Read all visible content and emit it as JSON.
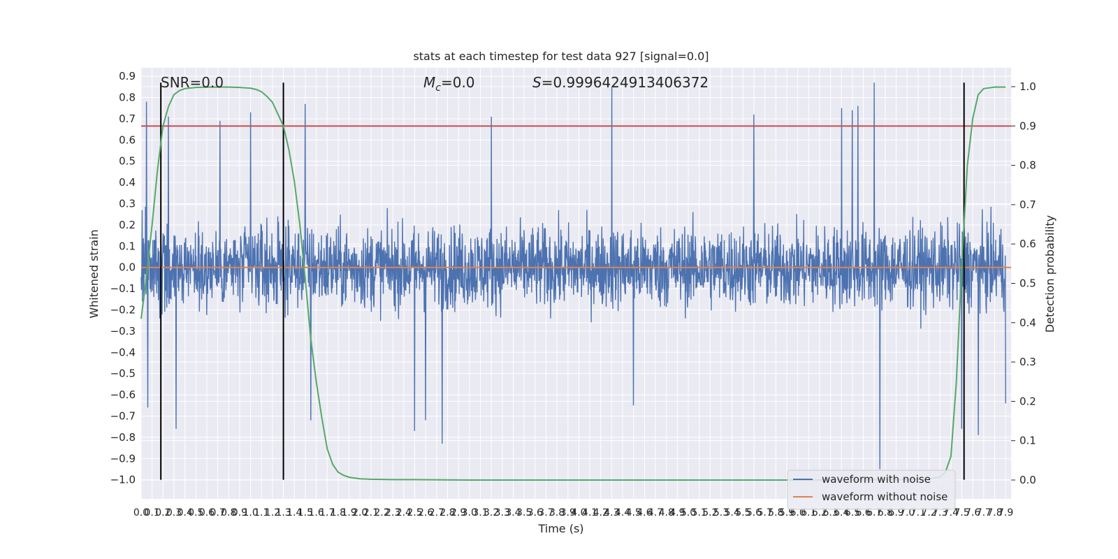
{
  "chart_data": {
    "type": "line",
    "title": "stats at each timestep for test data 927 [signal=0.0]",
    "xlabel": "Time (s)",
    "ylabel": "Whitened strain",
    "y2label": "Detection probability",
    "xlim": [
      0.0,
      7.95
    ],
    "ylim": [
      -1.09,
      0.94
    ],
    "y2lim": [
      -0.048,
      1.048
    ],
    "x_ticks": [
      0.0,
      0.1,
      0.2,
      0.3,
      0.4,
      0.5,
      0.6,
      0.7,
      0.8,
      0.9,
      1.0,
      1.1,
      1.2,
      1.3,
      1.4,
      1.5,
      1.6,
      1.7,
      1.8,
      1.9,
      2.0,
      2.1,
      2.2,
      2.3,
      2.4,
      2.5,
      2.6,
      2.7,
      2.8,
      2.9,
      3.0,
      3.1,
      3.2,
      3.3,
      3.4,
      3.5,
      3.6,
      3.7,
      3.8,
      3.9,
      4.0,
      4.1,
      4.2,
      4.3,
      4.4,
      4.5,
      4.6,
      4.7,
      4.8,
      4.9,
      5.0,
      5.1,
      5.2,
      5.3,
      5.4,
      5.5,
      5.6,
      5.7,
      5.8,
      5.9,
      6.0,
      6.1,
      6.2,
      6.3,
      6.4,
      6.5,
      6.6,
      6.7,
      6.8,
      6.9,
      7.0,
      7.1,
      7.2,
      7.3,
      7.4,
      7.5,
      7.6,
      7.7,
      7.8,
      7.9
    ],
    "y_ticks": [
      -1.0,
      -0.9,
      -0.8,
      -0.7,
      -0.6,
      -0.5,
      -0.4,
      -0.3,
      -0.2,
      -0.1,
      0.0,
      0.1,
      0.2,
      0.3,
      0.4,
      0.5,
      0.6,
      0.7,
      0.8,
      0.9
    ],
    "y2_ticks": [
      0.0,
      0.1,
      0.2,
      0.3,
      0.4,
      0.5,
      0.6,
      0.7,
      0.8,
      0.9,
      1.0
    ],
    "annotations": {
      "snr": "SNR=0.0",
      "mc_symbol": "M",
      "mc_sub": "c",
      "mc_value": "=0.0",
      "s_symbol": "S",
      "s_value": "=0.9996424913406372"
    },
    "threshold": {
      "y2": 0.9,
      "color": "#c44e52"
    },
    "vertical_lines": [
      0.18,
      1.3,
      7.52
    ],
    "series": [
      {
        "name": "waveform with noise",
        "axis": "left",
        "color": "#4c72b0",
        "envelope_note": "dense noise trace, about 0.3 to 0.5 upward, -0.3 to -0.55 downward",
        "peaks": [
          [
            0.05,
            0.78
          ],
          [
            0.06,
            -0.66
          ],
          [
            0.25,
            0.71
          ],
          [
            0.32,
            -0.76
          ],
          [
            0.72,
            0.69
          ],
          [
            1.0,
            0.73
          ],
          [
            1.5,
            0.77
          ],
          [
            1.55,
            -0.72
          ],
          [
            2.6,
            -0.72
          ],
          [
            2.75,
            -0.83
          ],
          [
            2.5,
            -0.77
          ],
          [
            3.2,
            0.71
          ],
          [
            4.3,
            0.85
          ],
          [
            4.5,
            -0.65
          ],
          [
            5.6,
            0.72
          ],
          [
            6.4,
            0.75
          ],
          [
            6.5,
            0.74
          ],
          [
            6.55,
            0.76
          ],
          [
            6.75,
            -0.95
          ],
          [
            6.7,
            0.87
          ],
          [
            7.5,
            -0.76
          ],
          [
            7.65,
            -0.79
          ],
          [
            7.9,
            -0.64
          ]
        ]
      },
      {
        "name": "waveform without noise",
        "axis": "left",
        "color": "#dd8452",
        "x": [
          0.0,
          7.95
        ],
        "y": [
          0.0,
          0.0
        ]
      },
      {
        "name": "detection probability",
        "axis": "right",
        "color": "#55a868",
        "x": [
          0.0,
          0.05,
          0.1,
          0.15,
          0.2,
          0.25,
          0.3,
          0.35,
          0.4,
          0.5,
          0.6,
          0.7,
          0.8,
          0.9,
          1.0,
          1.05,
          1.1,
          1.15,
          1.2,
          1.25,
          1.3,
          1.35,
          1.4,
          1.45,
          1.5,
          1.55,
          1.6,
          1.65,
          1.7,
          1.75,
          1.8,
          1.85,
          1.9,
          2.0,
          2.1,
          2.3,
          2.5,
          3.0,
          4.0,
          5.0,
          6.0,
          7.0,
          7.2,
          7.3,
          7.35,
          7.4,
          7.45,
          7.5,
          7.55,
          7.6,
          7.65,
          7.7,
          7.8,
          7.9
        ],
        "y": [
          0.41,
          0.52,
          0.65,
          0.79,
          0.9,
          0.95,
          0.98,
          0.99,
          0.995,
          0.998,
          0.999,
          0.999,
          0.999,
          0.998,
          0.996,
          0.993,
          0.987,
          0.975,
          0.96,
          0.93,
          0.9,
          0.84,
          0.76,
          0.65,
          0.51,
          0.36,
          0.25,
          0.16,
          0.08,
          0.04,
          0.02,
          0.012,
          0.007,
          0.003,
          0.002,
          0.001,
          0.001,
          0.0,
          0.0,
          0.0,
          0.0,
          0.001,
          0.003,
          0.008,
          0.02,
          0.06,
          0.25,
          0.55,
          0.8,
          0.92,
          0.98,
          0.995,
          0.999,
          0.999
        ]
      }
    ],
    "legend": {
      "position": "lower-right",
      "entries": [
        "waveform with noise",
        "waveform without noise"
      ]
    },
    "grid": true,
    "background": "#eaeaf2"
  }
}
